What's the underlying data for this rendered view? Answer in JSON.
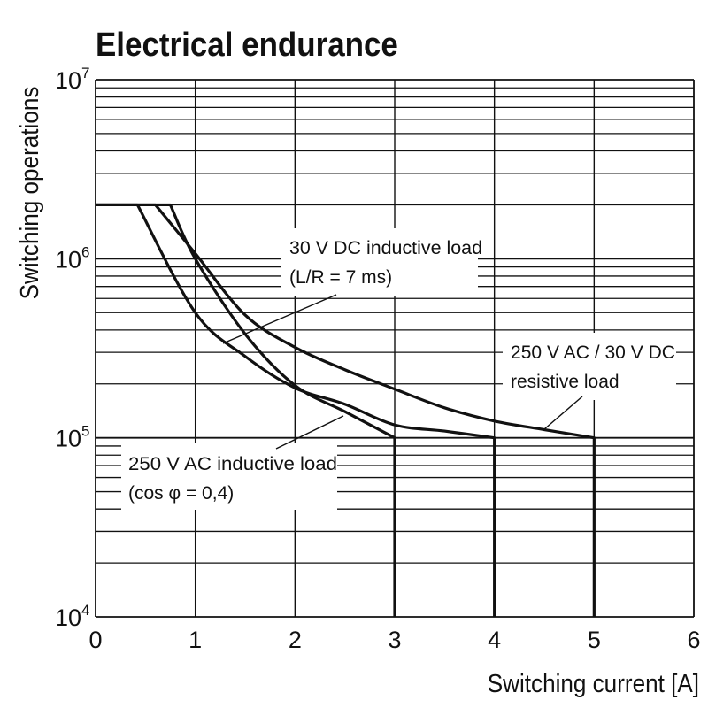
{
  "chart_data": {
    "type": "line",
    "title": "Electrical endurance",
    "xlabel": "Switching current [A]",
    "ylabel": "Switching operations",
    "xlim": [
      0,
      6
    ],
    "ylim": [
      10000,
      10000000
    ],
    "y_scale": "log",
    "x_ticks": [
      "0",
      "1",
      "2",
      "3",
      "4",
      "5",
      "6"
    ],
    "y_ticks": [
      {
        "base": "10",
        "exp": "4",
        "value": 10000
      },
      {
        "base": "10",
        "exp": "5",
        "value": 100000
      },
      {
        "base": "10",
        "exp": "6",
        "value": 1000000
      },
      {
        "base": "10",
        "exp": "7",
        "value": 10000000
      }
    ],
    "grid": true,
    "line_color": "#111111",
    "series": [
      {
        "name": "250 V AC inductive load (cos φ = 0,4)",
        "label_lines": [
          "250 V AC inductive load",
          "(cos φ = 0,4)"
        ],
        "points": [
          [
            0,
            2000000
          ],
          [
            0.75,
            2000000
          ],
          [
            1,
            1000000
          ],
          [
            1.5,
            380000
          ],
          [
            2,
            196000
          ],
          [
            2.5,
            140000
          ],
          [
            3,
            100000
          ],
          [
            3,
            10000
          ]
        ]
      },
      {
        "name": "30 V DC inductive load (L/R = 7 ms)",
        "label_lines": [
          "30 V DC inductive load",
          "(L/R = 7 ms)"
        ],
        "points": [
          [
            0,
            2000000
          ],
          [
            0.42,
            2000000
          ],
          [
            1,
            500000
          ],
          [
            1.5,
            285000
          ],
          [
            2,
            190000
          ],
          [
            2.5,
            154000
          ],
          [
            3,
            118000
          ],
          [
            3.5,
            109000
          ],
          [
            4,
            100000
          ],
          [
            4,
            10000
          ]
        ]
      },
      {
        "name": "250 V AC / 30 V DC resistive load",
        "label_lines": [
          "250 V AC / 30 V DC",
          "resistive load"
        ],
        "points": [
          [
            0,
            2000000
          ],
          [
            0.6,
            2000000
          ],
          [
            1,
            1070000
          ],
          [
            1.5,
            485000
          ],
          [
            2,
            320000
          ],
          [
            2.5,
            240000
          ],
          [
            3,
            187000
          ],
          [
            3.5,
            147000
          ],
          [
            4,
            124000
          ],
          [
            4.5,
            111000
          ],
          [
            5,
            100000
          ],
          [
            5,
            10000
          ]
        ]
      }
    ]
  }
}
